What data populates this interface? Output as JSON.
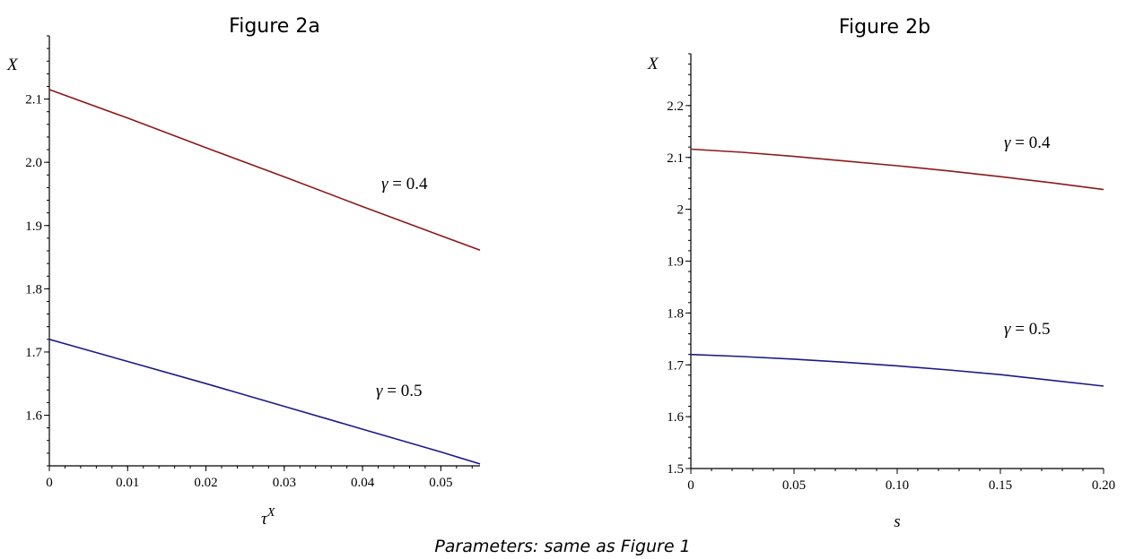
{
  "caption": "Parameters: same as Figure 1",
  "chart_data": [
    {
      "type": "line",
      "title": "Figure 2a",
      "ylabel": "X",
      "xlabel_base": "τ",
      "xlabel_sup": "X",
      "xlim": [
        0,
        0.055
      ],
      "ylim": [
        1.52,
        2.2
      ],
      "xticks": [
        0,
        0.01,
        0.02,
        0.03,
        0.04,
        0.05
      ],
      "xtick_labels": [
        "0",
        "0.01",
        "0.02",
        "0.03",
        "0.04",
        "0.05"
      ],
      "yticks": [
        1.6,
        1.7,
        1.8,
        1.9,
        2.0,
        2.1
      ],
      "ytick_labels": [
        "1.6",
        "1.7",
        "1.8",
        "1.9",
        "2.0",
        "2.1"
      ],
      "series": [
        {
          "name": "γ = 0.4",
          "label_prefix": "γ",
          "label_value": " = 0.4",
          "color": "#8b1a1a",
          "x": [
            0,
            0.01,
            0.02,
            0.03,
            0.04,
            0.05,
            0.055
          ],
          "y": [
            2.115,
            2.07,
            2.023,
            1.977,
            1.93,
            1.884,
            1.861
          ]
        },
        {
          "name": "γ = 0.5",
          "label_prefix": "γ",
          "label_value": " = 0.5",
          "color": "#1a1a8b",
          "x": [
            0,
            0.01,
            0.02,
            0.03,
            0.04,
            0.05,
            0.055
          ],
          "y": [
            1.72,
            1.685,
            1.65,
            1.614,
            1.578,
            1.542,
            1.523
          ]
        }
      ]
    },
    {
      "type": "line",
      "title": "Figure 2b",
      "ylabel": "X",
      "xlabel": "s",
      "xlim": [
        0,
        0.2
      ],
      "ylim": [
        1.5,
        2.3
      ],
      "xticks": [
        0,
        0.05,
        0.1,
        0.15,
        0.2
      ],
      "xtick_labels": [
        "0",
        "0.05",
        "0.10",
        "0.15",
        "0.20"
      ],
      "yticks": [
        1.5,
        1.6,
        1.7,
        1.8,
        1.9,
        2.0,
        2.1,
        2.2
      ],
      "ytick_labels": [
        "1.5",
        "1.6",
        "1.7",
        "1.8",
        "1.9",
        "2",
        "2.1",
        "2.2"
      ],
      "series": [
        {
          "name": "γ = 0.4",
          "label_prefix": "γ",
          "label_value": " = 0.4",
          "color": "#8b1a1a",
          "x": [
            0,
            0.025,
            0.05,
            0.075,
            0.1,
            0.125,
            0.15,
            0.175,
            0.2
          ],
          "y": [
            2.116,
            2.11,
            2.102,
            2.093,
            2.084,
            2.074,
            2.063,
            2.051,
            2.038
          ]
        },
        {
          "name": "γ = 0.5",
          "label_prefix": "γ",
          "label_value": " = 0.5",
          "color": "#1a1a8b",
          "x": [
            0,
            0.025,
            0.05,
            0.075,
            0.1,
            0.125,
            0.15,
            0.175,
            0.2
          ],
          "y": [
            1.72,
            1.716,
            1.711,
            1.705,
            1.698,
            1.69,
            1.681,
            1.67,
            1.659
          ]
        }
      ]
    }
  ]
}
